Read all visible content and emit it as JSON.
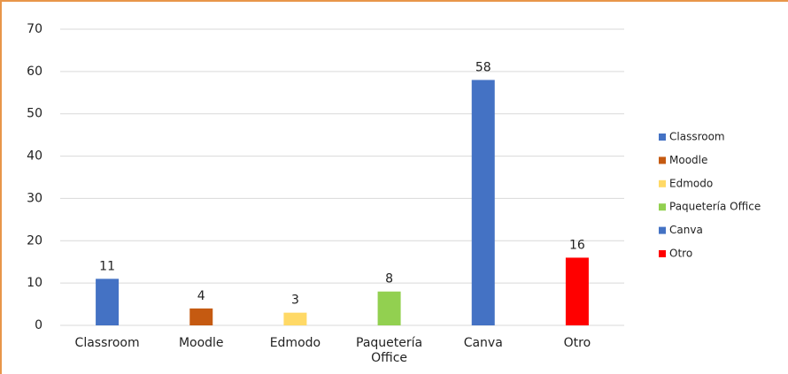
{
  "chart_data": {
    "type": "bar",
    "categories": [
      "Classroom",
      "Moodle",
      "Edmodo",
      "Paquetería Office",
      "Canva",
      "Otro"
    ],
    "values": [
      11,
      4,
      3,
      8,
      58,
      16
    ],
    "colors": [
      "#4472c4",
      "#c55a11",
      "#ffd966",
      "#92d050",
      "#4472c4",
      "#ff0000"
    ],
    "ylim": [
      0,
      70
    ],
    "yticks": [
      0,
      10,
      20,
      30,
      40,
      50,
      60,
      70
    ],
    "grid": true,
    "legend": "right"
  }
}
